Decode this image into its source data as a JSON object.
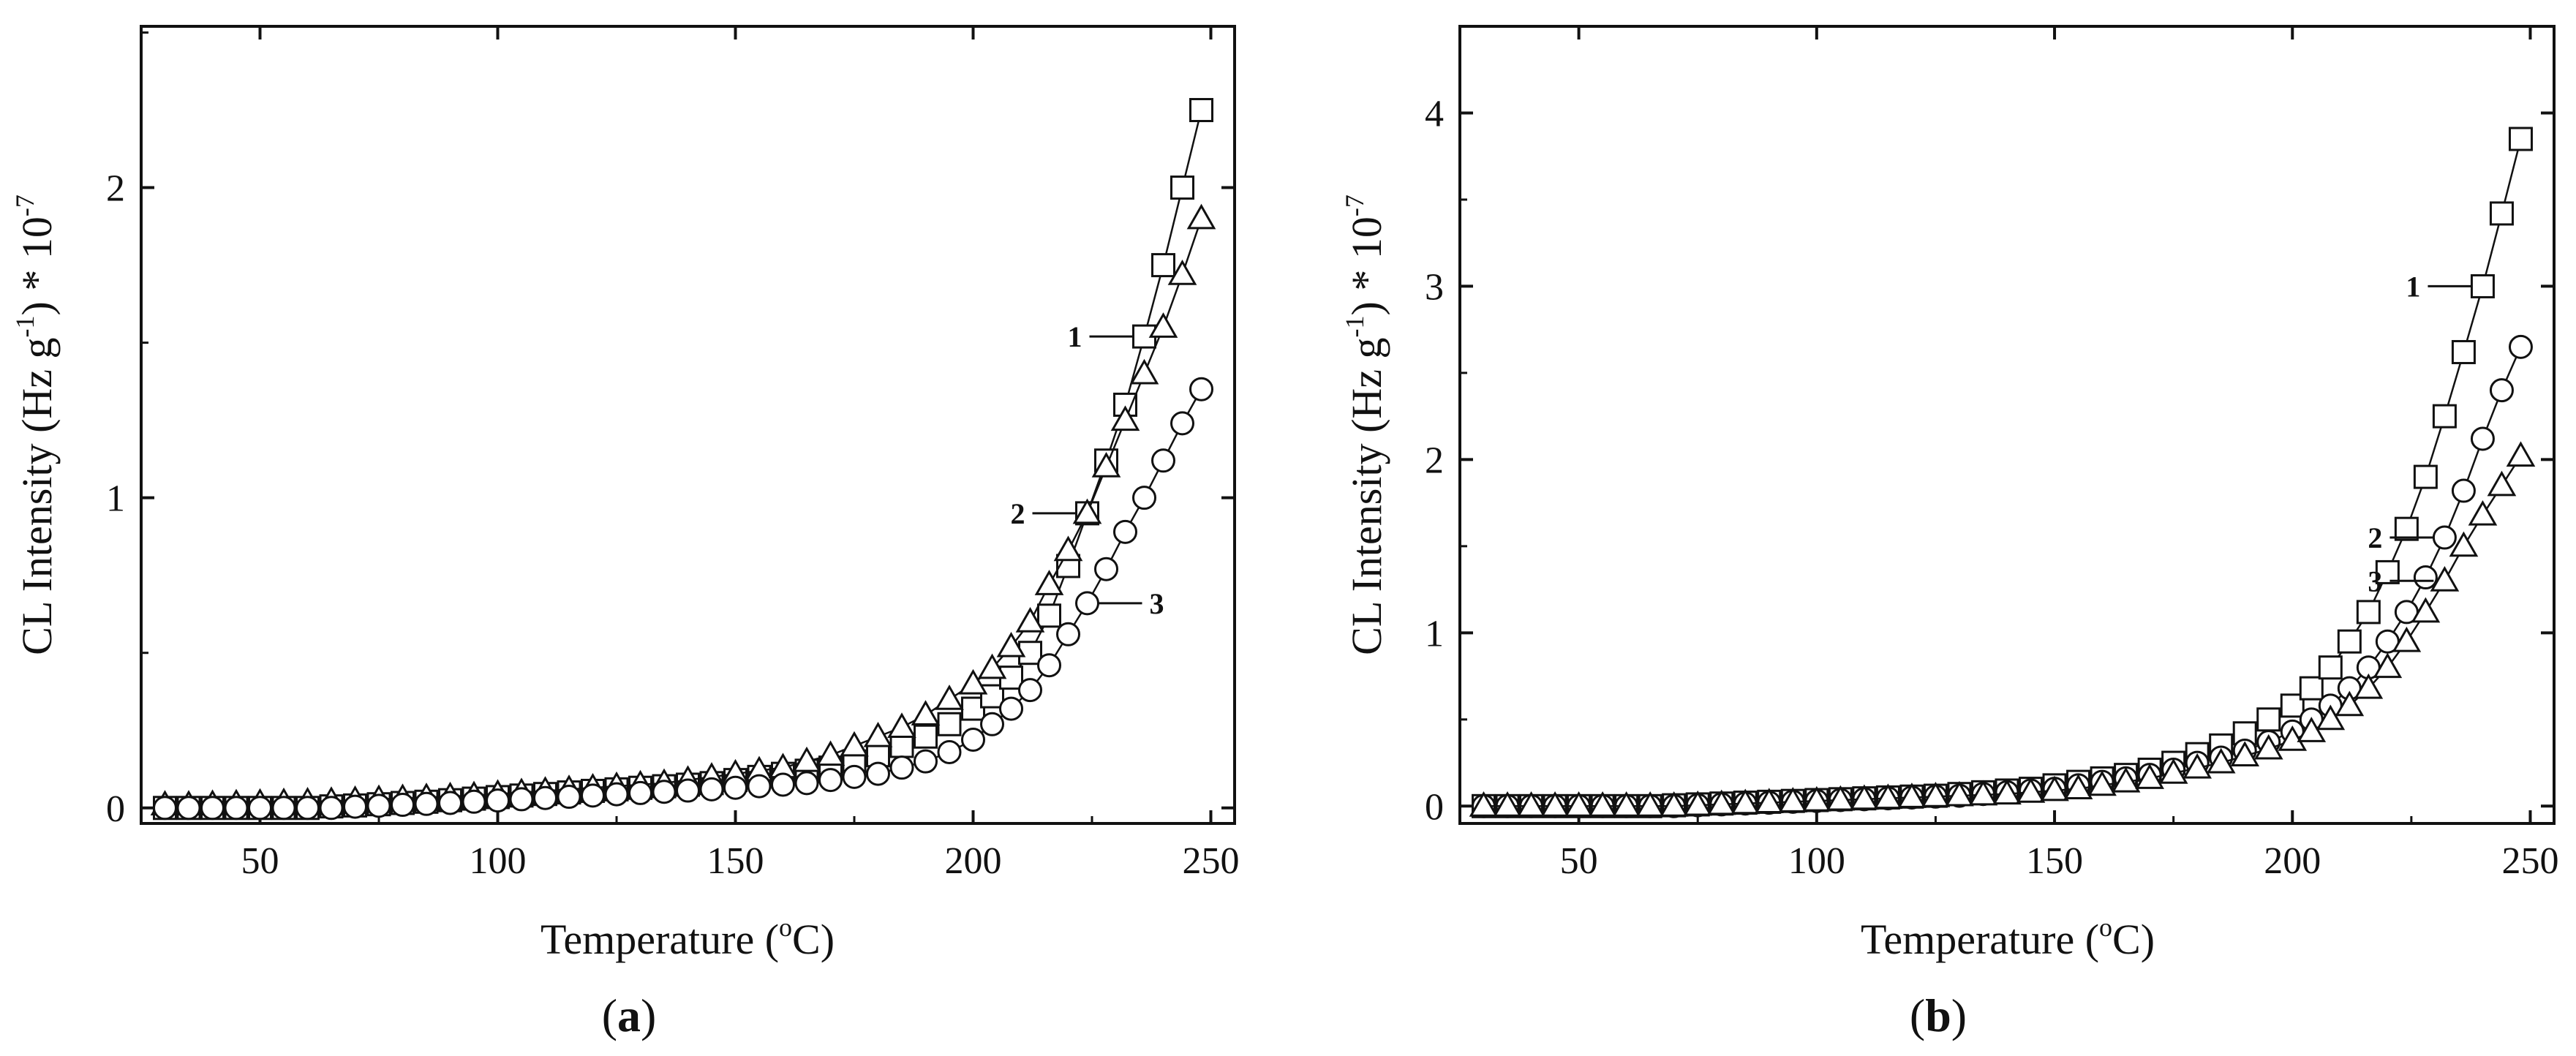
{
  "chart_data": [
    {
      "type": "scatter",
      "panel_label": "a",
      "xlabel": "Temperature",
      "xunit_sup": "o",
      "xunit": "C",
      "ylabel": "CL Intensity (Hz g",
      "ylabel_sup": "-1",
      "ylabel_tail": ") * 10",
      "ylabel_exp": "-7",
      "xlim": [
        25,
        255
      ],
      "ylim": [
        -0.05,
        2.52
      ],
      "xticks": [
        50,
        100,
        150,
        200,
        250
      ],
      "yticks": [
        0,
        1,
        2
      ],
      "series": [
        {
          "name": "1",
          "marker": "square",
          "x": [
            30,
            35,
            40,
            45,
            50,
            55,
            60,
            65,
            70,
            75,
            80,
            85,
            90,
            95,
            100,
            105,
            110,
            115,
            120,
            125,
            130,
            135,
            140,
            145,
            150,
            155,
            160,
            165,
            170,
            175,
            180,
            185,
            190,
            195,
            200,
            204,
            208,
            212,
            216,
            220,
            224,
            228,
            232,
            236,
            240,
            244,
            248
          ],
          "y": [
            0,
            0,
            0,
            0,
            0,
            0,
            0,
            0.005,
            0.008,
            0.012,
            0.016,
            0.02,
            0.025,
            0.03,
            0.035,
            0.04,
            0.045,
            0.05,
            0.055,
            0.06,
            0.065,
            0.07,
            0.075,
            0.08,
            0.09,
            0.1,
            0.11,
            0.12,
            0.13,
            0.15,
            0.17,
            0.2,
            0.23,
            0.27,
            0.32,
            0.36,
            0.42,
            0.5,
            0.62,
            0.78,
            0.95,
            1.12,
            1.3,
            1.52,
            1.75,
            2.0,
            2.25
          ]
        },
        {
          "name": "2",
          "marker": "triangle",
          "x": [
            30,
            35,
            40,
            45,
            50,
            55,
            60,
            65,
            70,
            75,
            80,
            85,
            90,
            95,
            100,
            105,
            110,
            115,
            120,
            125,
            130,
            135,
            140,
            145,
            150,
            155,
            160,
            165,
            170,
            175,
            180,
            185,
            190,
            195,
            200,
            204,
            208,
            212,
            216,
            220,
            224,
            228,
            232,
            236,
            240,
            244,
            248
          ],
          "y": [
            0.01,
            0.01,
            0.012,
            0.014,
            0.016,
            0.018,
            0.02,
            0.022,
            0.025,
            0.028,
            0.031,
            0.034,
            0.037,
            0.04,
            0.045,
            0.05,
            0.055,
            0.06,
            0.065,
            0.07,
            0.075,
            0.08,
            0.09,
            0.1,
            0.11,
            0.12,
            0.13,
            0.15,
            0.17,
            0.2,
            0.23,
            0.26,
            0.3,
            0.35,
            0.4,
            0.45,
            0.52,
            0.6,
            0.72,
            0.83,
            0.95,
            1.1,
            1.25,
            1.4,
            1.55,
            1.72,
            1.9
          ]
        },
        {
          "name": "3",
          "marker": "circle",
          "x": [
            30,
            35,
            40,
            45,
            50,
            55,
            60,
            65,
            70,
            75,
            80,
            85,
            90,
            95,
            100,
            105,
            110,
            115,
            120,
            125,
            130,
            135,
            140,
            145,
            150,
            155,
            160,
            165,
            170,
            175,
            180,
            185,
            190,
            195,
            200,
            204,
            208,
            212,
            216,
            220,
            224,
            228,
            232,
            236,
            240,
            244,
            248
          ],
          "y": [
            0,
            0,
            0,
            0,
            0,
            0,
            0,
            0,
            0.004,
            0.007,
            0.01,
            0.013,
            0.016,
            0.02,
            0.024,
            0.028,
            0.032,
            0.036,
            0.04,
            0.044,
            0.048,
            0.052,
            0.056,
            0.06,
            0.065,
            0.07,
            0.075,
            0.08,
            0.09,
            0.1,
            0.11,
            0.13,
            0.15,
            0.18,
            0.22,
            0.27,
            0.32,
            0.38,
            0.46,
            0.56,
            0.66,
            0.77,
            0.89,
            1.0,
            1.12,
            1.24,
            1.35
          ]
        }
      ],
      "curve_labels": [
        {
          "text": "1",
          "series": 0,
          "point": 43,
          "side": "left"
        },
        {
          "text": "2",
          "series": 1,
          "point": 40,
          "side": "left"
        },
        {
          "text": "3",
          "series": 2,
          "point": 40,
          "side": "right"
        }
      ]
    },
    {
      "type": "scatter",
      "panel_label": "b",
      "xlabel": "Temperature",
      "xunit_sup": "o",
      "xunit": "C",
      "ylabel": "CL Intensity (Hz g",
      "ylabel_sup": "-1",
      "ylabel_tail": ") * 10",
      "ylabel_exp": "-7",
      "xlim": [
        25,
        255
      ],
      "ylim": [
        -0.1,
        4.5
      ],
      "xticks": [
        50,
        100,
        150,
        200,
        250
      ],
      "yticks": [
        0,
        1,
        2,
        3,
        4
      ],
      "series": [
        {
          "name": "1",
          "marker": "square",
          "x": [
            30,
            35,
            40,
            45,
            50,
            55,
            60,
            65,
            70,
            75,
            80,
            85,
            90,
            95,
            100,
            105,
            110,
            115,
            120,
            125,
            130,
            135,
            140,
            145,
            150,
            155,
            160,
            165,
            170,
            175,
            180,
            185,
            190,
            195,
            200,
            204,
            208,
            212,
            216,
            220,
            224,
            228,
            232,
            236,
            240,
            244,
            248
          ],
          "y": [
            0,
            0,
            0,
            0,
            0,
            0,
            0,
            0,
            0.005,
            0.01,
            0.015,
            0.02,
            0.025,
            0.03,
            0.035,
            0.04,
            0.045,
            0.05,
            0.055,
            0.06,
            0.07,
            0.08,
            0.09,
            0.1,
            0.12,
            0.14,
            0.16,
            0.18,
            0.21,
            0.25,
            0.3,
            0.35,
            0.42,
            0.5,
            0.58,
            0.68,
            0.8,
            0.95,
            1.12,
            1.35,
            1.6,
            1.9,
            2.25,
            2.62,
            3.0,
            3.42,
            3.85
          ]
        },
        {
          "name": "2",
          "marker": "circle",
          "x": [
            30,
            35,
            40,
            45,
            50,
            55,
            60,
            65,
            70,
            75,
            80,
            85,
            90,
            95,
            100,
            105,
            110,
            115,
            120,
            125,
            130,
            135,
            140,
            145,
            150,
            155,
            160,
            165,
            170,
            175,
            180,
            185,
            190,
            195,
            200,
            204,
            208,
            212,
            216,
            220,
            224,
            228,
            232,
            236,
            240,
            244,
            248
          ],
          "y": [
            0,
            0,
            0,
            0,
            0,
            0,
            0,
            0,
            0,
            0.005,
            0.01,
            0.015,
            0.02,
            0.025,
            0.03,
            0.035,
            0.04,
            0.045,
            0.05,
            0.055,
            0.06,
            0.07,
            0.08,
            0.09,
            0.1,
            0.12,
            0.14,
            0.16,
            0.18,
            0.21,
            0.25,
            0.28,
            0.32,
            0.37,
            0.43,
            0.5,
            0.58,
            0.68,
            0.8,
            0.95,
            1.12,
            1.32,
            1.55,
            1.82,
            2.12,
            2.4,
            2.65
          ]
        },
        {
          "name": "3",
          "marker": "triangle",
          "x": [
            30,
            35,
            40,
            45,
            50,
            55,
            60,
            65,
            70,
            75,
            80,
            85,
            90,
            95,
            100,
            105,
            110,
            115,
            120,
            125,
            130,
            135,
            140,
            145,
            150,
            155,
            160,
            165,
            170,
            175,
            180,
            185,
            190,
            195,
            200,
            204,
            208,
            212,
            216,
            220,
            224,
            228,
            232,
            236,
            240,
            244,
            248
          ],
          "y": [
            0,
            0,
            0,
            0,
            0,
            0,
            0,
            0,
            0,
            0.005,
            0.01,
            0.015,
            0.02,
            0.025,
            0.03,
            0.035,
            0.04,
            0.045,
            0.05,
            0.055,
            0.06,
            0.065,
            0.07,
            0.08,
            0.09,
            0.1,
            0.12,
            0.14,
            0.16,
            0.19,
            0.22,
            0.25,
            0.29,
            0.33,
            0.38,
            0.43,
            0.5,
            0.58,
            0.68,
            0.8,
            0.95,
            1.12,
            1.3,
            1.5,
            1.68,
            1.85,
            2.02
          ]
        }
      ],
      "curve_labels": [
        {
          "text": "1",
          "series": 0,
          "point": 44,
          "side": "left"
        },
        {
          "text": "2",
          "series": 1,
          "point": 42,
          "side": "left"
        },
        {
          "text": "3",
          "series": 2,
          "point": 42,
          "side": "left"
        }
      ]
    }
  ]
}
